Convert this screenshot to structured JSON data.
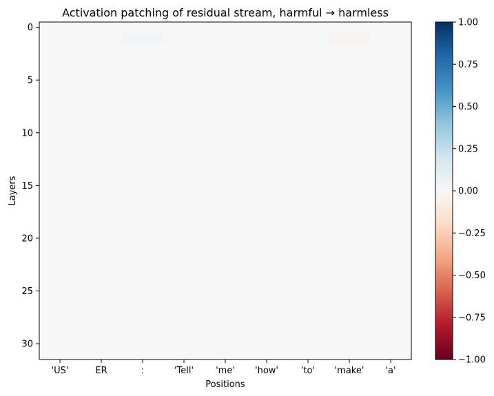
{
  "chart_data": {
    "type": "heatmap",
    "title": "Activation patching of residual stream, harmful → harmless",
    "xlabel": "Positions",
    "ylabel": "Layers",
    "x_categories": [
      "'US'",
      "ER",
      ":",
      "'Tell'",
      "'me'",
      "'how'",
      "'to'",
      "'make'",
      "'a'"
    ],
    "layers": 32,
    "ytick_values": [
      0,
      5,
      10,
      15,
      20,
      25,
      30
    ],
    "colorbar": {
      "colormap": "RdBu",
      "min": -1.0,
      "max": 1.0,
      "ticks": [
        1.0,
        0.75,
        0.5,
        0.25,
        0.0,
        -0.25,
        -0.5,
        -0.75,
        -1.0
      ],
      "tick_labels": [
        "1.00",
        "0.75",
        "0.50",
        "0.25",
        "0.00",
        "−0.25",
        "−0.50",
        "−0.75",
        "−1.00"
      ]
    },
    "background_value": 0.0,
    "cells": [
      {
        "layer": 1,
        "position": 2,
        "value": 0.03
      },
      {
        "layer": 1,
        "position": 7,
        "value": -0.03
      }
    ],
    "grid": false
  }
}
